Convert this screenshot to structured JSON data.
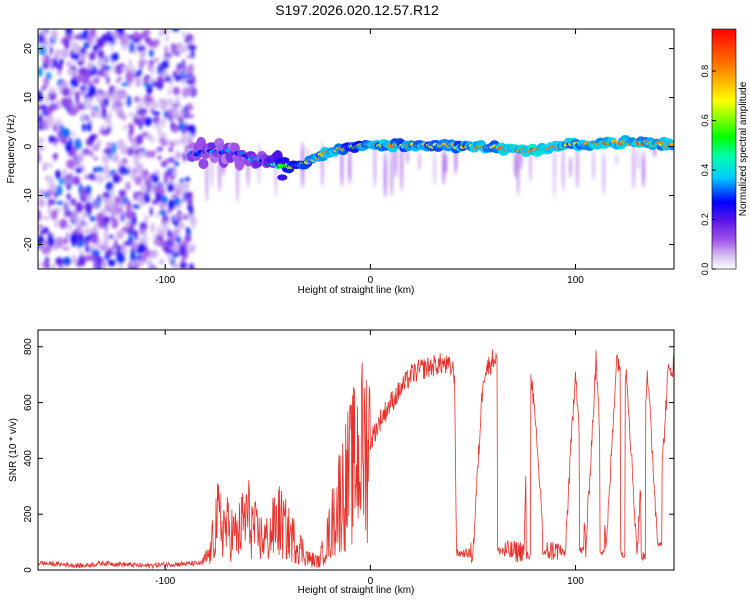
{
  "figure_title": "S197.2026.020.12.57.R12",
  "chart_data": [
    {
      "type": "heatmap",
      "title": "S197.2026.020.12.57.R12",
      "xlabel": "Height of straight line (km)",
      "ylabel": "Frequency (Hz)",
      "xlim": [
        -162,
        148
      ],
      "ylim": [
        -25,
        24
      ],
      "xticks": [
        -100,
        0,
        100
      ],
      "xtick_labels": [
        "-100",
        "0",
        "100"
      ],
      "yticks": [
        -20,
        -10,
        0,
        10,
        20
      ],
      "ytick_labels": [
        "-20",
        "-10",
        "0",
        "10",
        "20"
      ],
      "noise_region_km": [
        -162,
        -88
      ],
      "signal_ridge": {
        "x_km": [
          -88,
          -80,
          -70,
          -60,
          -50,
          -40,
          -30,
          -20,
          -10,
          0,
          20,
          40,
          60,
          80,
          100,
          120,
          147
        ],
        "freq_hz": [
          -1.5,
          -1.2,
          -1.0,
          -2.0,
          -3.5,
          -4.5,
          -3.0,
          -1.0,
          0.0,
          0.3,
          0.3,
          0.2,
          -0.2,
          -0.8,
          0.5,
          0.8,
          0.5
        ],
        "amplitude": [
          0.25,
          0.3,
          0.3,
          0.3,
          0.35,
          0.6,
          0.7,
          0.85,
          0.6,
          0.8,
          0.75,
          0.75,
          0.8,
          0.9,
          0.8,
          0.85,
          0.8
        ]
      },
      "colorbar": {
        "label": "Normalized spectral amplitude",
        "range": [
          0,
          0.97
        ],
        "ticks": [
          0.0,
          0.2,
          0.4,
          0.6,
          0.8
        ],
        "tick_labels": [
          "0.0",
          "0.2",
          "0.4",
          "0.6",
          "0.8"
        ]
      }
    },
    {
      "type": "line",
      "xlabel": "Height of straight line (km)",
      "ylabel": "SNR (10 * v/v)",
      "xlim": [
        -162,
        148
      ],
      "ylim": [
        0,
        860
      ],
      "xticks": [
        -100,
        0,
        100
      ],
      "xtick_labels": [
        "-100",
        "0",
        "100"
      ],
      "yticks": [
        0,
        200,
        400,
        600,
        800
      ],
      "ytick_labels": [
        "0",
        "200",
        "400",
        "600",
        "800"
      ],
      "series": [
        {
          "name": "SNR",
          "color": "#e8302a",
          "x": [
            -162,
            -150,
            -140,
            -130,
            -120,
            -110,
            -100,
            -90,
            -82,
            -78,
            -75,
            -70,
            -65,
            -60,
            -55,
            -50,
            -45,
            -40,
            -35,
            -30,
            -25,
            -20,
            -15,
            -10,
            -5,
            0,
            5,
            10,
            15,
            20,
            25,
            30,
            35,
            40,
            41,
            42,
            43,
            50,
            55,
            60,
            62,
            63,
            70,
            75,
            77,
            78,
            85,
            95,
            100,
            105,
            110,
            115,
            120,
            125,
            130,
            135,
            140,
            145,
            148
          ],
          "values": [
            25,
            20,
            15,
            25,
            20,
            15,
            20,
            22,
            25,
            60,
            180,
            150,
            120,
            200,
            120,
            110,
            180,
            130,
            90,
            40,
            30,
            130,
            260,
            340,
            420,
            460,
            540,
            600,
            650,
            700,
            720,
            730,
            740,
            720,
            700,
            100,
            60,
            60,
            700,
            760,
            760,
            70,
            65,
            70,
            750,
            750,
            70,
            70,
            730,
            70,
            750,
            70,
            760,
            700,
            60,
            720,
            100,
            700,
            740
          ]
        }
      ],
      "dropouts": [
        {
          "from_km": 42,
          "to_km": 48,
          "level": 60
        },
        {
          "from_km": 62,
          "to_km": 64,
          "level": 70
        },
        {
          "from_km": 76,
          "to_km": 78,
          "level": 50
        },
        {
          "from_km": 84,
          "to_km": 86,
          "level": 60
        },
        {
          "from_km": 93,
          "to_km": 95,
          "level": 60
        },
        {
          "from_km": 102,
          "to_km": 104,
          "level": 70
        },
        {
          "from_km": 112,
          "to_km": 114,
          "level": 70
        },
        {
          "from_km": 122,
          "to_km": 124,
          "level": 60
        },
        {
          "from_km": 132,
          "to_km": 134,
          "level": 50
        },
        {
          "from_km": 140,
          "to_km": 142,
          "level": 100
        }
      ]
    }
  ]
}
